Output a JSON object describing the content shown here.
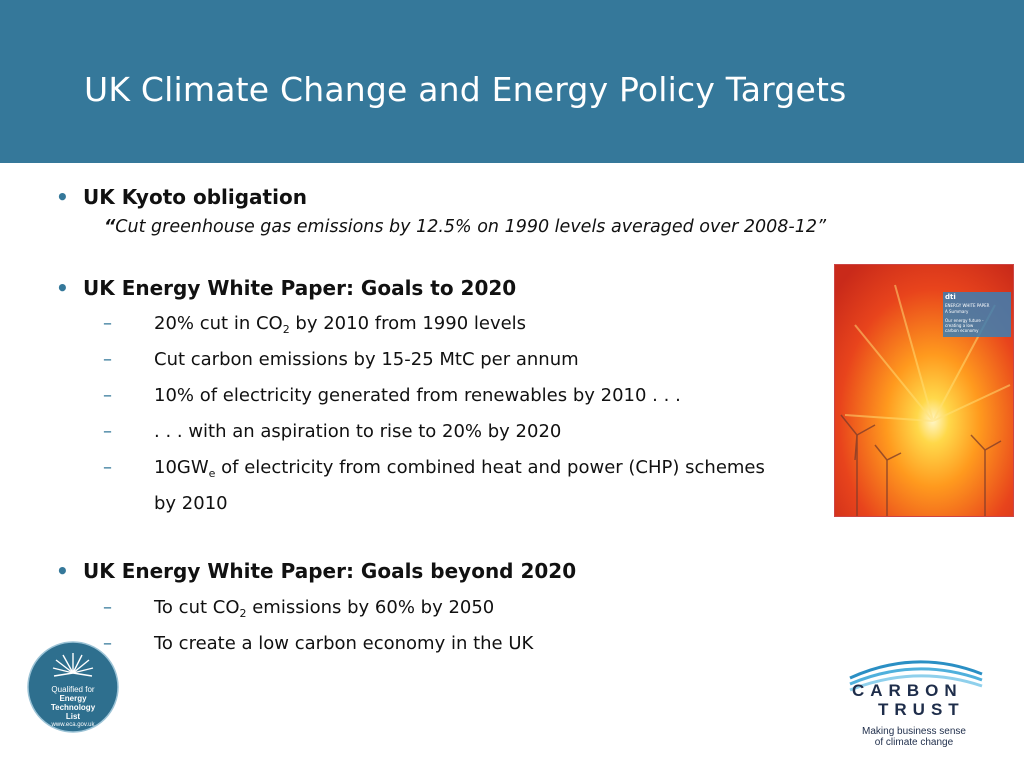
{
  "title": "UK Climate Change and Energy Policy Targets",
  "colors": {
    "header": "#35789a",
    "accent": "#35789a",
    "text": "#111111"
  },
  "kyoto": {
    "heading": "UK Kyoto obligation",
    "quote_open": "“",
    "quote": "Cut greenhouse gas emissions by 12.5% on 1990 levels averaged over 2008-12”"
  },
  "goals_2020": {
    "heading": "UK Energy White Paper: Goals to 2020",
    "items": [
      {
        "pre": "20% cut in CO",
        "sub": "2",
        "post": " by 2010 from 1990 levels"
      },
      {
        "text": "Cut carbon emissions by 15-25 MtC per annum"
      },
      {
        "text": "10% of electricity generated from renewables by 2010 . . ."
      },
      {
        "text": ". . . with an aspiration to rise to 20% by 2020"
      },
      {
        "pre": "10GW",
        "sub": "e",
        "post": " of electricity from combined heat and power (CHP) schemes",
        "cont": "by 2010"
      }
    ]
  },
  "goals_beyond": {
    "heading": "UK Energy White Paper: Goals beyond 2020",
    "items": [
      {
        "pre": "To cut CO",
        "sub": "2",
        "post": " emissions by 60% by 2050"
      },
      {
        "text": "To create a low carbon economy in the UK"
      }
    ]
  },
  "cover": {
    "logo": "dti",
    "line1": "ENERGY WHITE PAPER",
    "line2": "A Summary",
    "line3": "Our energy future -",
    "line4": "creating a low",
    "line5": "carbon economy"
  },
  "eta_badge": {
    "line1": "Qualified for",
    "line2": "Energy",
    "line3": "Technology",
    "line4": "List",
    "url": "www.eca.gov.uk"
  },
  "carbon_trust": {
    "name_line1": "CARBON",
    "name_line2": "TRUST",
    "tagline_line1": "Making business sense",
    "tagline_line2": "of climate change"
  },
  "bullet_glyph": "•",
  "dash_glyph": "–"
}
